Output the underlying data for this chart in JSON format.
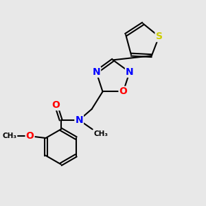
{
  "background_color": "#e8e8e8",
  "bond_color": "#000000",
  "bond_width": 1.5,
  "atom_labels": {
    "S": {
      "color": "#cccc00",
      "fontsize": 10,
      "fontweight": "bold"
    },
    "N": {
      "color": "#0000ff",
      "fontsize": 10,
      "fontweight": "bold"
    },
    "O": {
      "color": "#ff0000",
      "fontsize": 10,
      "fontweight": "bold"
    }
  },
  "figsize": [
    3.0,
    3.0
  ],
  "dpi": 100,
  "xlim": [
    0.5,
    8.5
  ],
  "ylim": [
    0.8,
    9.2
  ]
}
